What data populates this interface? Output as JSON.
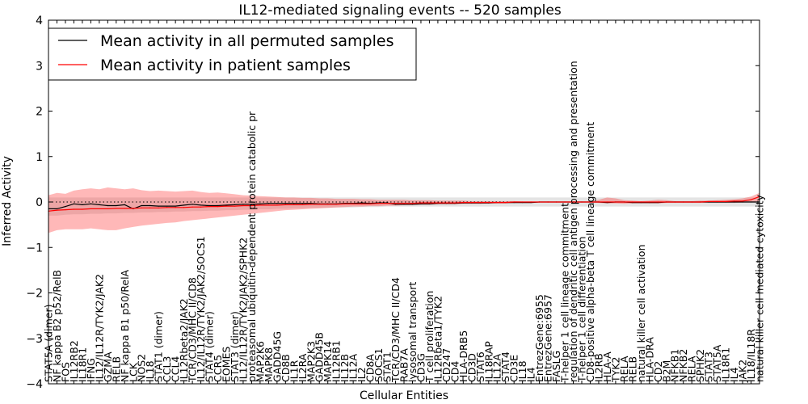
{
  "chart_data": {
    "type": "line",
    "title": "IL12-mediated signaling events -- 520 samples",
    "xlabel": "Cellular Entities",
    "ylabel": "Inferred Activity",
    "ylim": [
      -4,
      4
    ],
    "yticks": [
      -4,
      -3,
      -2,
      -1,
      0,
      1,
      2,
      3,
      4
    ],
    "grid": false,
    "legend_position": "top-left",
    "categories": [
      "STAT5A (dimer)",
      "NF kappa B2 p52/RelB",
      "FOS",
      "IL12RB2",
      "IL18R1",
      "IFNG",
      "IL12/IL12R/TYK2/JAK2",
      "GZMA",
      "RELB",
      "NF kappa B1 p50/RelA",
      "LCK",
      "NOS2",
      "IL18",
      "STAT1 (dimer)",
      "CCL3",
      "CCL4",
      "IL12Rbeta2/JAK2",
      "TCR/CD3/MHC II/CD8",
      "IL12/IL12R/TYK2/JAK2/SOCS1",
      "STAT4 (dimer)",
      "CCR5",
      "EOMES",
      "STAT3 (dimer)",
      "IL12/IL12R/TYK2/JAK2/SPHK2",
      "proteasomal ubiquitin-dependent protein catabolic pr",
      "MAP2K6",
      "MAPK8",
      "GADD45G",
      "CD8B",
      "IL1R",
      "IL2RA",
      "MAP2K3",
      "GADD45B",
      "MAPK14",
      "IL12RB1",
      "IL12B",
      "IL12A",
      "IL2",
      "CD8A",
      "SOCS1",
      "STAT1",
      "TCR/CD3/MHC II/CD4",
      "RAB7A",
      "lysosomal transport",
      "CD3G",
      "T cell proliferation",
      "IL12Rbeta1/TYK2",
      "CD247",
      "CD4",
      "HLA-DRB5",
      "CD3D",
      "STAT6",
      "IL18RAP",
      "IL12A",
      "STAT4",
      "CD3E",
      "IL18",
      "IL4",
      "EntrezGene:6955",
      "EntrezGene:6957",
      "FASLG",
      "T-helper 1 cell lineage commitment",
      "regulation of dendritic cell antigen processing and presentation",
      "T-helper 1 cell differentiation",
      "CD8-positive alpha-beta T cell lineage commitment",
      "IL2RB",
      "HLA-A",
      "TYK2",
      "RELA",
      "RELB",
      "natural killer cell activation",
      "HLA-DRA",
      "CD2",
      "B2M",
      "NFKB1",
      "NFKB2",
      "RELA",
      "SPHK2",
      "STAT3",
      "STAT5A",
      "IL18R1",
      "IL4",
      "JAK2",
      "IL18/IL18R",
      "natural killer cell mediated cytoxicity"
    ],
    "series": [
      {
        "name": "Mean activity in all permuted samples",
        "color": "#000000",
        "values": [
          -0.15,
          -0.15,
          -0.1,
          -0.04,
          -0.06,
          -0.04,
          -0.06,
          -0.08,
          -0.08,
          -0.06,
          -0.15,
          -0.08,
          -0.08,
          -0.09,
          -0.09,
          -0.09,
          -0.07,
          -0.05,
          -0.07,
          -0.08,
          -0.08,
          -0.07,
          -0.06,
          -0.05,
          -0.05,
          -0.04,
          -0.03,
          -0.03,
          -0.03,
          -0.03,
          -0.03,
          -0.03,
          -0.04,
          -0.04,
          -0.04,
          -0.03,
          -0.03,
          -0.02,
          -0.03,
          -0.02,
          -0.02,
          -0.05,
          -0.05,
          -0.05,
          -0.04,
          -0.04,
          -0.03,
          -0.03,
          -0.03,
          -0.02,
          -0.02,
          -0.02,
          -0.02,
          -0.01,
          -0.01,
          -0.01,
          -0.01,
          -0.01,
          0.0,
          0.0,
          0.0,
          0.0,
          0.0,
          0.0,
          0.0,
          0.0,
          -0.01,
          0.0,
          0.0,
          -0.01,
          -0.01,
          -0.01,
          -0.01,
          0.0,
          0.0,
          0.0,
          0.0,
          0.0,
          0.0,
          0.0,
          0.0,
          0.0,
          0.0,
          0.0,
          0.0
        ]
      },
      {
        "name": "Mean activity in patient samples",
        "color": "#ff0000",
        "values": [
          -0.2,
          -0.18,
          -0.17,
          -0.16,
          -0.16,
          -0.15,
          -0.15,
          -0.15,
          -0.14,
          -0.14,
          -0.14,
          -0.13,
          -0.13,
          -0.13,
          -0.12,
          -0.12,
          -0.12,
          -0.11,
          -0.11,
          -0.1,
          -0.1,
          -0.09,
          -0.09,
          -0.08,
          -0.08,
          -0.07,
          -0.07,
          -0.07,
          -0.06,
          -0.06,
          -0.06,
          -0.05,
          -0.05,
          -0.05,
          -0.05,
          -0.04,
          -0.04,
          -0.04,
          -0.04,
          -0.03,
          -0.03,
          -0.03,
          -0.03,
          -0.03,
          -0.02,
          -0.02,
          -0.02,
          -0.02,
          -0.02,
          -0.01,
          -0.01,
          -0.01,
          -0.01,
          -0.01,
          -0.01,
          0.0,
          0.0,
          0.0,
          0.0,
          0.0,
          0.0,
          0.0,
          0.0,
          0.0,
          0.0,
          0.0,
          0.0,
          0.0,
          0.0,
          0.0,
          0.0,
          0.0,
          0.0,
          0.0,
          0.0,
          0.0,
          0.0,
          0.0,
          0.01,
          0.01,
          0.01,
          0.02,
          0.02,
          0.05,
          0.12
        ]
      }
    ],
    "permuted_band": {
      "lower": [
        -0.3,
        -0.3,
        -0.28,
        -0.27,
        -0.27,
        -0.26,
        -0.26,
        -0.25,
        -0.25,
        -0.24,
        -0.24,
        -0.23,
        -0.23,
        -0.22,
        -0.22,
        -0.21,
        -0.21,
        -0.2,
        -0.2,
        -0.19,
        -0.19,
        -0.18,
        -0.18,
        -0.17,
        -0.17,
        -0.16,
        -0.16,
        -0.15,
        -0.15,
        -0.14,
        -0.14,
        -0.13,
        -0.13,
        -0.13,
        -0.12,
        -0.12,
        -0.12,
        -0.11,
        -0.11,
        -0.11,
        -0.1,
        -0.1,
        -0.1,
        -0.1,
        -0.1,
        -0.1,
        -0.1,
        -0.1,
        -0.1,
        -0.1,
        -0.1,
        -0.1,
        -0.1,
        -0.1,
        -0.1,
        -0.1,
        -0.1,
        -0.1,
        -0.1,
        -0.1,
        -0.1,
        -0.1,
        -0.1,
        -0.1,
        -0.1,
        -0.1,
        -0.1,
        -0.1,
        -0.1,
        -0.1,
        -0.1,
        -0.1,
        -0.1,
        -0.1,
        -0.1,
        -0.1,
        -0.1,
        -0.1,
        -0.1,
        -0.1,
        -0.1,
        -0.1,
        -0.1,
        -0.1,
        -0.1
      ],
      "upper": [
        0.1,
        0.1,
        0.1,
        0.1,
        0.1,
        0.1,
        0.1,
        0.1,
        0.1,
        0.1,
        0.1,
        0.1,
        0.1,
        0.1,
        0.1,
        0.1,
        0.1,
        0.1,
        0.1,
        0.1,
        0.1,
        0.1,
        0.1,
        0.1,
        0.1,
        0.1,
        0.1,
        0.1,
        0.1,
        0.1,
        0.1,
        0.1,
        0.1,
        0.1,
        0.1,
        0.1,
        0.1,
        0.1,
        0.1,
        0.1,
        0.1,
        0.1,
        0.1,
        0.1,
        0.1,
        0.1,
        0.1,
        0.1,
        0.1,
        0.1,
        0.1,
        0.1,
        0.1,
        0.1,
        0.1,
        0.1,
        0.1,
        0.1,
        0.1,
        0.1,
        0.1,
        0.1,
        0.1,
        0.1,
        0.1,
        0.1,
        0.1,
        0.1,
        0.1,
        0.1,
        0.1,
        0.1,
        0.1,
        0.1,
        0.1,
        0.1,
        0.1,
        0.1,
        0.1,
        0.1,
        0.1,
        0.1,
        0.1,
        0.1,
        0.1
      ]
    },
    "patient_band": {
      "lower": [
        -0.68,
        -0.62,
        -0.6,
        -0.6,
        -0.6,
        -0.58,
        -0.6,
        -0.62,
        -0.62,
        -0.58,
        -0.55,
        -0.52,
        -0.5,
        -0.48,
        -0.46,
        -0.45,
        -0.42,
        -0.4,
        -0.38,
        -0.36,
        -0.34,
        -0.32,
        -0.3,
        -0.28,
        -0.26,
        -0.24,
        -0.22,
        -0.2,
        -0.18,
        -0.17,
        -0.16,
        -0.15,
        -0.14,
        -0.13,
        -0.12,
        -0.11,
        -0.1,
        -0.1,
        -0.09,
        -0.09,
        -0.08,
        -0.08,
        -0.07,
        -0.07,
        -0.06,
        -0.06,
        -0.05,
        -0.05,
        -0.05,
        -0.04,
        -0.04,
        -0.04,
        -0.03,
        -0.03,
        -0.03,
        -0.02,
        -0.02,
        -0.02,
        -0.01,
        -0.01,
        -0.01,
        -0.01,
        -0.01,
        -0.01,
        -0.01,
        -0.02,
        -0.03,
        -0.03,
        -0.04,
        -0.03,
        -0.03,
        -0.03,
        -0.03,
        -0.02,
        -0.02,
        -0.02,
        -0.02,
        -0.02,
        -0.02,
        -0.02,
        -0.02,
        -0.02,
        -0.01,
        0.0,
        0.02
      ],
      "upper": [
        0.15,
        0.2,
        0.18,
        0.25,
        0.28,
        0.3,
        0.28,
        0.32,
        0.3,
        0.28,
        0.3,
        0.26,
        0.24,
        0.25,
        0.24,
        0.23,
        0.24,
        0.25,
        0.22,
        0.2,
        0.21,
        0.19,
        0.17,
        0.15,
        0.14,
        0.13,
        0.12,
        0.11,
        0.1,
        0.1,
        0.09,
        0.09,
        0.08,
        0.08,
        0.07,
        0.07,
        0.07,
        0.06,
        0.06,
        0.05,
        0.05,
        0.05,
        0.05,
        0.04,
        0.04,
        0.04,
        0.03,
        0.03,
        0.03,
        0.03,
        0.02,
        0.02,
        0.02,
        0.02,
        0.02,
        0.02,
        0.01,
        0.01,
        0.01,
        0.01,
        0.01,
        0.01,
        0.01,
        0.01,
        0.01,
        0.05,
        0.1,
        0.08,
        0.04,
        0.03,
        0.02,
        0.03,
        0.05,
        0.04,
        0.02,
        0.02,
        0.02,
        0.03,
        0.03,
        0.04,
        0.05,
        0.06,
        0.08,
        0.12,
        0.2
      ]
    },
    "reference_line": 0
  }
}
